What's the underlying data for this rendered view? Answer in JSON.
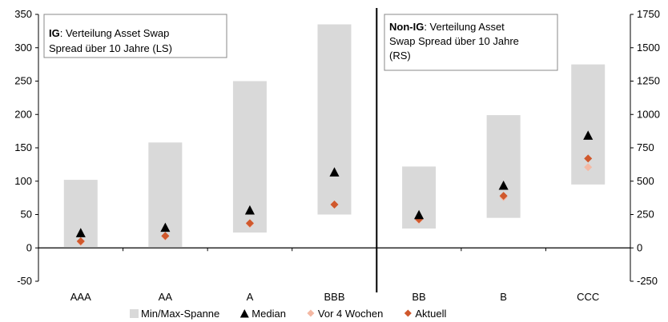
{
  "chart_data": {
    "type": "range-dot",
    "categories": [
      "AAA",
      "AA",
      "A",
      "BBB",
      "BB",
      "B",
      "CCC"
    ],
    "left_axis": {
      "ylim": [
        -50,
        350
      ],
      "ticks": [
        -50,
        0,
        50,
        100,
        150,
        200,
        250,
        300,
        350
      ],
      "applies_to": [
        "AAA",
        "AA",
        "A",
        "BBB"
      ]
    },
    "right_axis": {
      "ylim": [
        -250,
        1750
      ],
      "ticks": [
        -250,
        0,
        250,
        500,
        750,
        1000,
        1250,
        1500,
        1750
      ],
      "applies_to": [
        "BB",
        "B",
        "CCC"
      ]
    },
    "series": [
      {
        "name": "Min/Max-Spanne",
        "kind": "range",
        "color": "#d9d9d9",
        "min": [
          0,
          0,
          23,
          50,
          145,
          225,
          475
        ],
        "max": [
          102,
          158,
          250,
          335,
          610,
          995,
          1375
        ]
      },
      {
        "name": "Median",
        "kind": "marker-triangle",
        "color": "#000000",
        "values": [
          22,
          30,
          56,
          113,
          245,
          465,
          840
        ]
      },
      {
        "name": "Vor 4 Wochen",
        "kind": "marker-diamond",
        "color": "#f4b8a3",
        "values": [
          9,
          17,
          36,
          65,
          210,
          380,
          605
        ]
      },
      {
        "name": "Aktuell",
        "kind": "marker-diamond",
        "color": "#d0582c",
        "values": [
          10,
          18,
          37,
          65,
          215,
          390,
          670
        ]
      }
    ],
    "annotations": {
      "left": {
        "bold": "IG",
        "rest_line1": ": Verteilung Asset Swap",
        "line2": "Spread über 10 Jahre (LS)"
      },
      "right": {
        "bold": "Non-IG",
        "rest_line1": ": Verteilung Asset",
        "line2": "Swap Spread über 10 Jahre",
        "line3": "(RS)"
      }
    },
    "legend_placement": "bottom",
    "grid": false
  }
}
